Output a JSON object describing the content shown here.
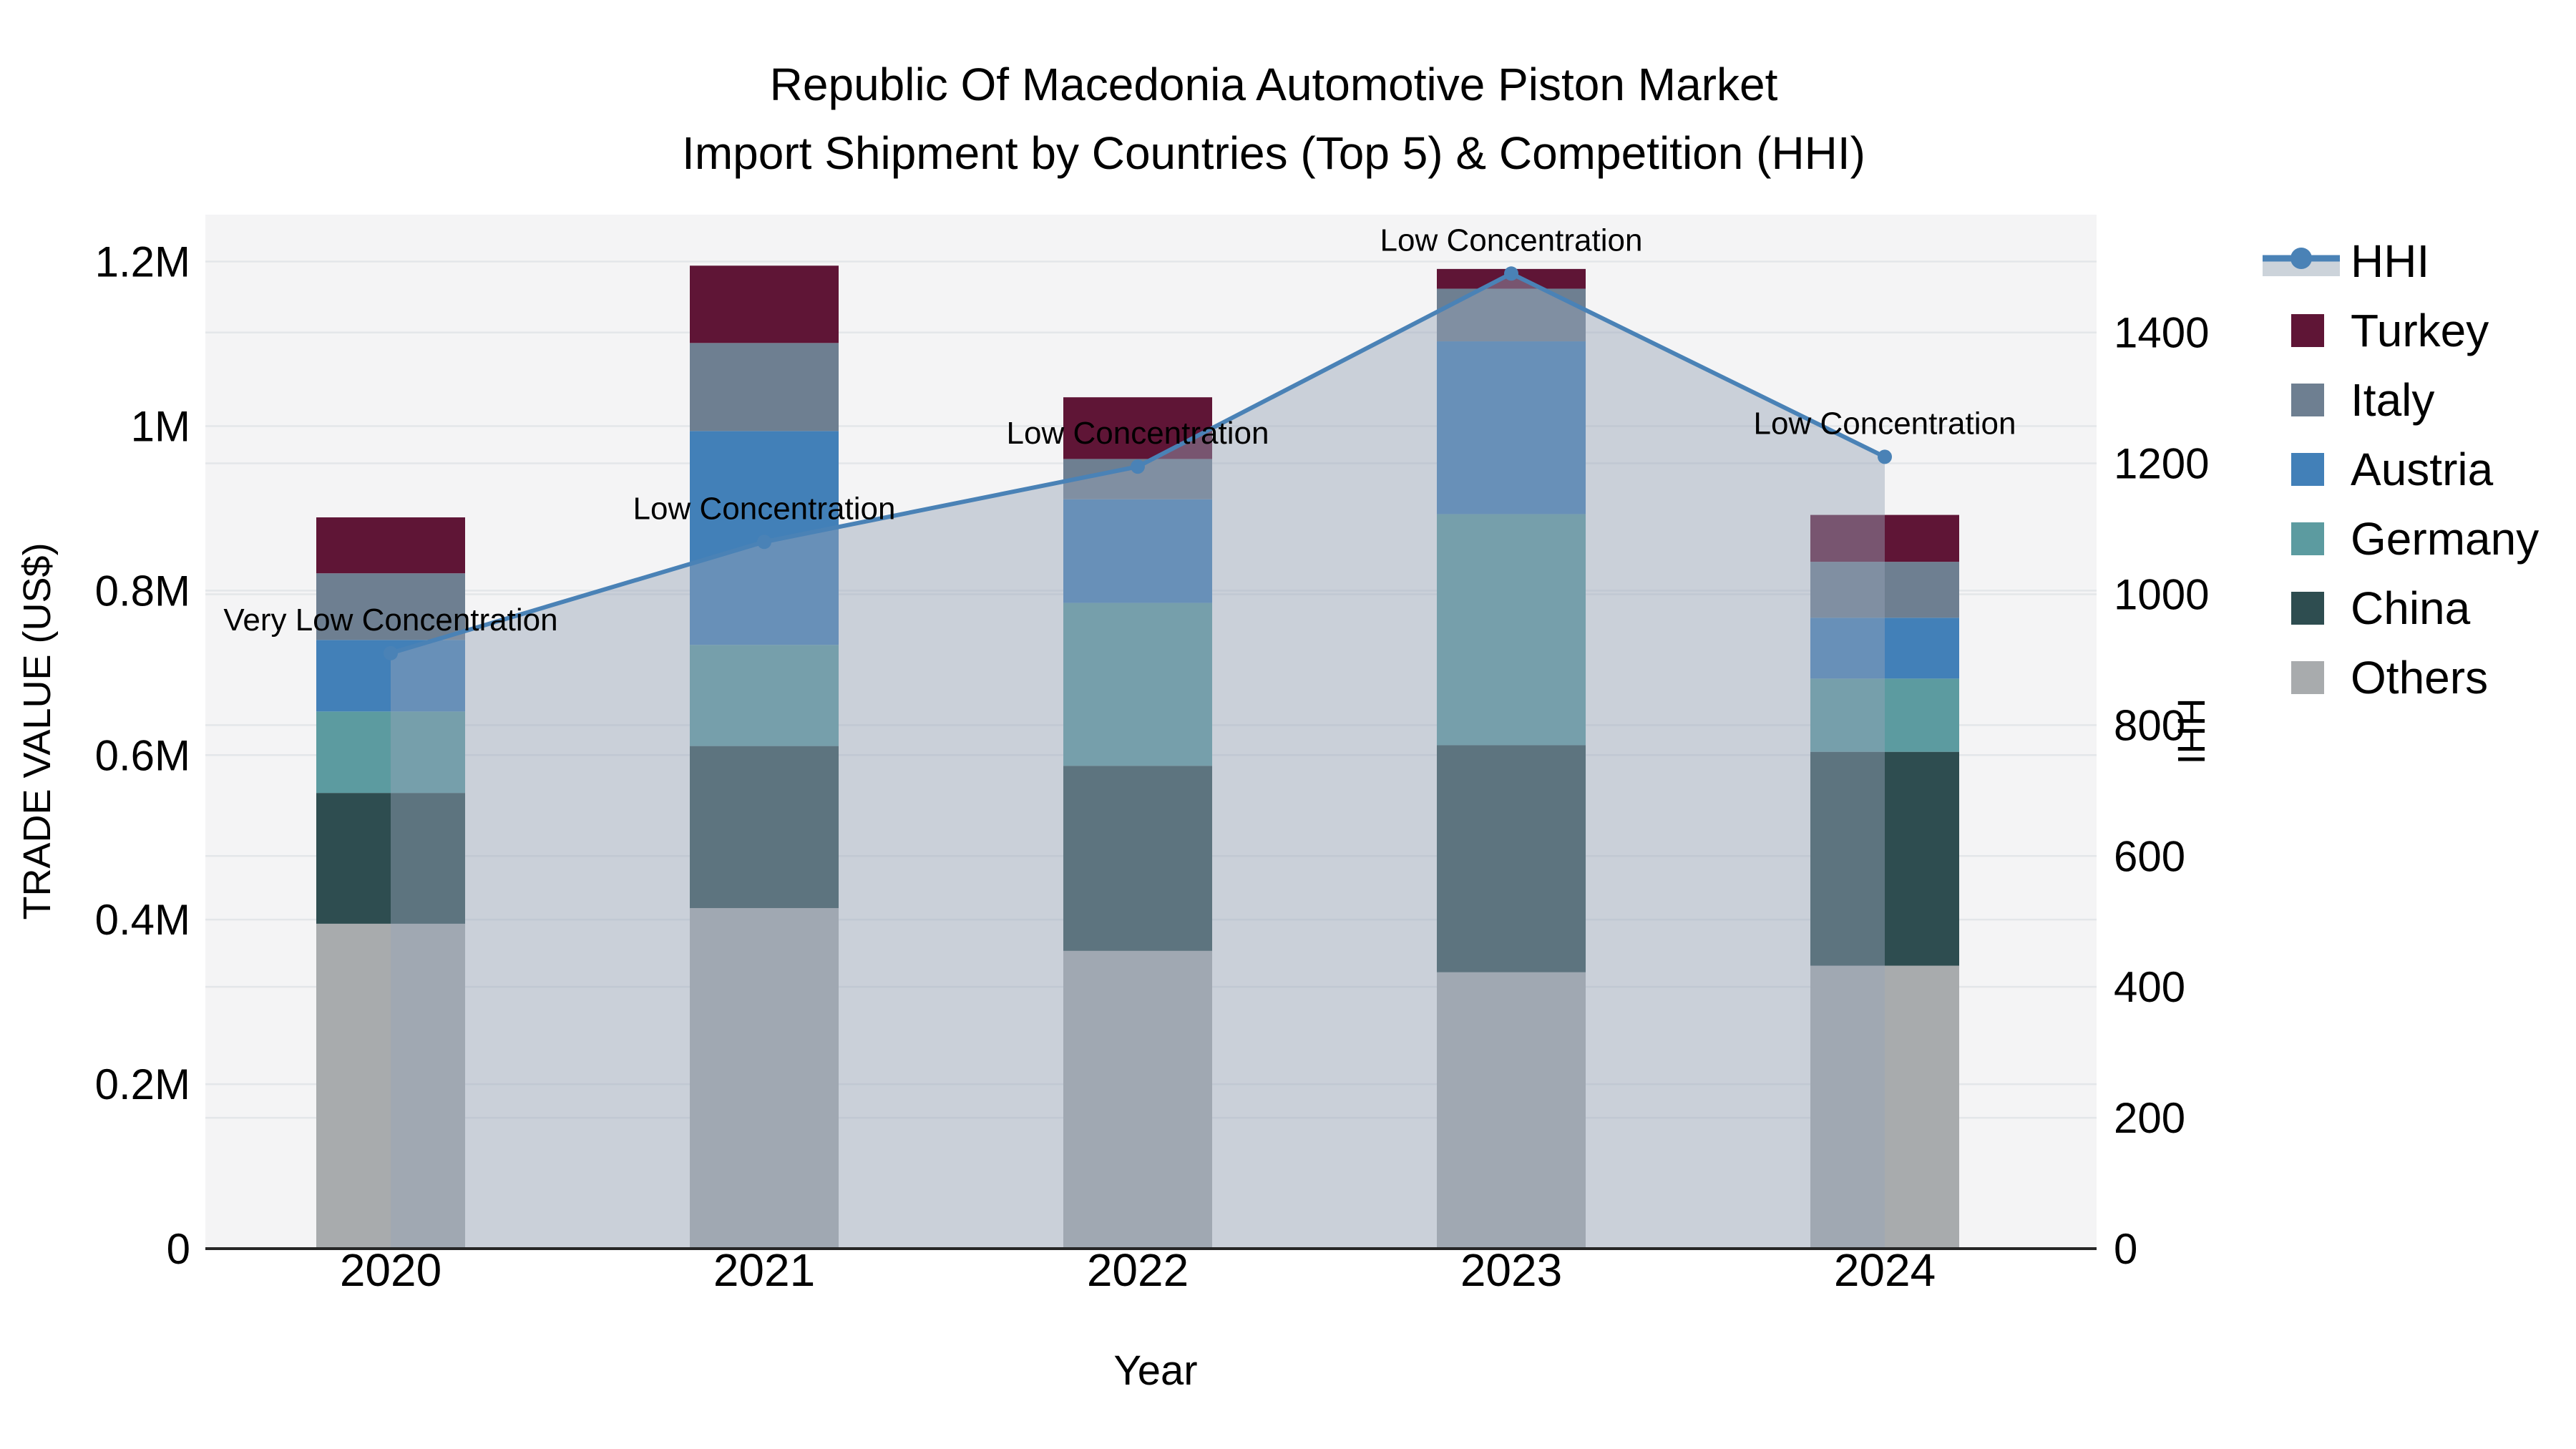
{
  "title": {
    "line1": "Republic Of Macedonia Automotive Piston Market",
    "line2": "Import Shipment by Countries (Top 5) & Competition (HHI)"
  },
  "axes": {
    "x_label": "Year",
    "y_left_label": "TRADE VALUE (US$)",
    "y_right_label": "HHI",
    "x_tick_labels": [
      "2020",
      "2021",
      "2022",
      "2023",
      "2024"
    ],
    "y_left_ticks": [
      {
        "value": 0,
        "label": "0"
      },
      {
        "value": 200000,
        "label": "0.2M"
      },
      {
        "value": 400000,
        "label": "0.4M"
      },
      {
        "value": 600000,
        "label": "0.6M"
      },
      {
        "value": 800000,
        "label": "0.8M"
      },
      {
        "value": 1000000,
        "label": "1M"
      },
      {
        "value": 1200000,
        "label": "1.2M"
      }
    ],
    "y_right_ticks": [
      {
        "value": 0,
        "label": "0"
      },
      {
        "value": 200,
        "label": "200"
      },
      {
        "value": 400,
        "label": "400"
      },
      {
        "value": 600,
        "label": "600"
      },
      {
        "value": 800,
        "label": "800"
      },
      {
        "value": 1000,
        "label": "1000"
      },
      {
        "value": 1200,
        "label": "1200"
      },
      {
        "value": 1400,
        "label": "1400"
      }
    ]
  },
  "legend": {
    "items": [
      {
        "label": "HHI",
        "type": "line"
      },
      {
        "label": "Turkey",
        "type": "swatch",
        "color": "#5f1536"
      },
      {
        "label": "Italy",
        "type": "swatch",
        "color": "#6e7f91"
      },
      {
        "label": "Austria",
        "type": "swatch",
        "color": "#4280b8"
      },
      {
        "label": "Germany",
        "type": "swatch",
        "color": "#5c9ba0"
      },
      {
        "label": "China",
        "type": "swatch",
        "color": "#2e4d50"
      },
      {
        "label": "Others",
        "type": "swatch",
        "color": "#a8abad"
      }
    ]
  },
  "colors": {
    "hhi_line": "#4a82b6",
    "hhi_area": "rgba(150,163,185,0.45)",
    "legend_band": "#ccd3da",
    "plot_bg": "#f4f4f5",
    "grid": "#e3e6e9",
    "axis_line": "#262626",
    "text": "#000000"
  },
  "chart_data": {
    "type": "combo: stacked bar (left axis, trade value US$) + line+area (right axis, HHI)",
    "categories": [
      "2020",
      "2021",
      "2022",
      "2023",
      "2024"
    ],
    "bar_unit": "US$",
    "stacking_order_bottom_to_top": [
      "Others",
      "China",
      "Germany",
      "Austria",
      "Italy",
      "Turkey"
    ],
    "series": [
      {
        "name": "Others",
        "color": "#a8abad",
        "values": [
          395000,
          414000,
          362000,
          336000,
          344000
        ]
      },
      {
        "name": "China",
        "color": "#2e4d50",
        "values": [
          159000,
          197000,
          225000,
          276000,
          260000
        ]
      },
      {
        "name": "Germany",
        "color": "#5c9ba0",
        "values": [
          99000,
          123000,
          198000,
          281000,
          89000
        ]
      },
      {
        "name": "Austria",
        "color": "#4280b8",
        "values": [
          87000,
          260000,
          126000,
          210000,
          74000
        ]
      },
      {
        "name": "Italy",
        "color": "#6e7f91",
        "values": [
          81000,
          107000,
          49000,
          64000,
          68000
        ]
      },
      {
        "name": "Turkey",
        "color": "#5f1536",
        "values": [
          68000,
          94000,
          75000,
          24000,
          57000
        ]
      }
    ],
    "bar_totals": [
      889000,
      1195000,
      1035000,
      1191000,
      892000
    ],
    "line_series": {
      "name": "HHI",
      "values": [
        910,
        1080,
        1195,
        1490,
        1210
      ],
      "annotations": [
        "Very Low Concentration",
        "Low Concentration",
        "Low Concentration",
        "Low Concentration",
        "Low Concentration"
      ]
    },
    "ylim_left": [
      0,
      1257000
    ],
    "ylim_right": [
      0,
      1580
    ],
    "grid": "on",
    "legend_position": "outside top right"
  }
}
